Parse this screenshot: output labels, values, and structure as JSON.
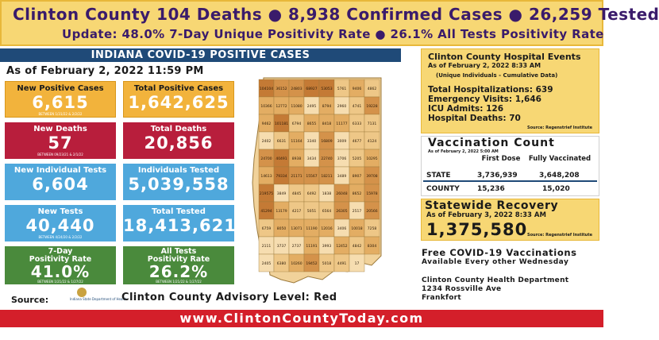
{
  "banner": {
    "line1": "Clinton County  104 Deaths ● 8,938 Confirmed Cases      ● 26,259 Tested",
    "line2": "Update: 48.0% 7-Day Unique Positivity Rate ● 26.1% All Tests Positivity Rate"
  },
  "indiana": {
    "title": "INDIANA COVID-19 POSITIVE CASES",
    "as_of": "As of February 2, 2022 11:59 PM",
    "tiles": [
      {
        "label": "New Positive Cases",
        "value": "6,615",
        "sub": "BETWEEN 1/31/22 & 2/2/22"
      },
      {
        "label": "Total Positive Cases",
        "value": "1,642,625",
        "sub": ""
      },
      {
        "label": "New Deaths",
        "value": "57",
        "sub": "BETWEEN 09/23/21 & 2/1/22"
      },
      {
        "label": "Total Deaths",
        "value": "20,856",
        "sub": ""
      },
      {
        "label": "New Individual Tests",
        "value": "6,604",
        "sub": ""
      },
      {
        "label": "Individuals Tested",
        "value": "5,039,558",
        "sub": ""
      },
      {
        "label": "New Tests",
        "value": "40,440",
        "sub": "BETWEEN 4/24/20 & 2/2/22"
      },
      {
        "label": "Total Tested",
        "value": "18,413,621",
        "sub": ""
      },
      {
        "label1": "7-Day",
        "label2": "Positivity Rate",
        "value": "41.0%",
        "sub": "BETWEEN 1/21/22 & 1/27/22"
      },
      {
        "label1": "All Tests",
        "label2": "Positivity Rate",
        "value": "26.2%",
        "sub": "BETWEEN 1/21/22 & 1/27/22"
      }
    ],
    "source_label": "Source:",
    "source_org": "Indiana State Department of Health",
    "advisory": "Clinton County Advisory Level: Red"
  },
  "map_counts": [
    "104104",
    "36152",
    "24803",
    "68927",
    "53053",
    "5761",
    "9406",
    "4862",
    "10366",
    "12772",
    "11080",
    "2495",
    "8794",
    "2960",
    "4741",
    "19228",
    "9462",
    "101181",
    "6794",
    "8655",
    "8418",
    "11177",
    "6333",
    "7131",
    "2402",
    "6631",
    "11164",
    "3340",
    "16809",
    "3009",
    "4677",
    "4124",
    "24700",
    "40491",
    "8938",
    "3434",
    "22740",
    "3706",
    "5205",
    "10295",
    "14613",
    "79334",
    "21171",
    "15567",
    "18211",
    "3489",
    "8907",
    "39708",
    "219575",
    "3849",
    "4845",
    "6492",
    "1838",
    "26048",
    "8652",
    "15978",
    "41294",
    "13179",
    "4217",
    "5051",
    "6564",
    "26305",
    "2517",
    "20566",
    "6759",
    "8050",
    "13071",
    "11190",
    "12016",
    "3406",
    "10018",
    "7258",
    "2111",
    "3737",
    "2737",
    "11191",
    "3993",
    "12452",
    "4842",
    "8304",
    "2405",
    "6380",
    "10260",
    "19452",
    "5018",
    "4491",
    "17"
  ],
  "hospital": {
    "title": "Clinton County Hospital Events",
    "as_of": "As of February 2, 2022 8:33 AM",
    "note": "(Unique Individuals - Cumulative Data)",
    "lines": [
      "Total Hospitalizations: 639",
      "Emergency Visits: 1,646",
      "ICU Admits: 126",
      "Hospital Deaths: 70"
    ],
    "source": "Source: Regenstrief Institute"
  },
  "vaccination": {
    "title": "Vaccination Count",
    "as_of": "As of February 2, 2022 5:00 AM",
    "col1": "First Dose",
    "col2": "Fully Vaccinated",
    "state_label": "STATE",
    "state_first": "3,736,939",
    "state_full": "3,648,208",
    "county_label": "COUNTY",
    "county_first": "15,236",
    "county_full": "15,020"
  },
  "recovery": {
    "title": "Statewide Recovery",
    "as_of": "As of February 3, 2022 8:33 AM",
    "value": "1,375,580",
    "source": "Source: Regenstrief Institute"
  },
  "free_vaccinations": {
    "line1": "Free COVID-19 Vaccinations",
    "line2": "Available Every other Wednesday"
  },
  "department": {
    "name": "Clinton County Health Department",
    "address": "1234 Rossville Ave",
    "city": "Frankfort"
  },
  "footer": "www.ClintonCountyToday.com",
  "colors": {
    "orange": "#f2b33c",
    "red": "#b81e3c",
    "blue": "#4fa8dc",
    "green": "#4a8a3c",
    "navy": "#1f4a78",
    "yellow": "#f7d774",
    "footer_red": "#d41f2a"
  }
}
